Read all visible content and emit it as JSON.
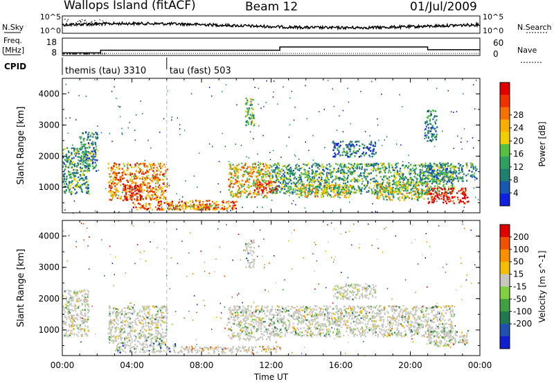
{
  "header": {
    "site": "Wallops Island (fitACF)",
    "beam": "Beam 12",
    "date": "01/Jul/2009"
  },
  "summary_panels": {
    "nsky_label": "N.Sky",
    "nsearch_label": "N.Search",
    "freq_label_1": "Freq.",
    "freq_label_2": "[MHz]",
    "nave_label": "Nave",
    "cpid_label": "CPID",
    "noise_ticks_left": [
      "10^5",
      "10^0"
    ],
    "noise_ticks_right": [
      "10^5",
      "10^0"
    ],
    "freq_ticks": [
      "18",
      "8"
    ],
    "nave_ticks": [
      "60",
      "0"
    ],
    "cpid_segments": [
      {
        "label": "themis (tau) 3310",
        "start_hour": 0,
        "end_hour": 6
      },
      {
        "label": "tau (fast) 503",
        "start_hour": 6,
        "end_hour": 24
      }
    ],
    "freq_steps": [
      {
        "start_hour": 0.0,
        "end_hour": 2.2,
        "mhz": 9.5
      },
      {
        "start_hour": 2.2,
        "end_hour": 11.9,
        "mhz": 11.0
      },
      {
        "start_hour": 11.9,
        "end_hour": 12.5,
        "mhz": 11.0
      },
      {
        "start_hour": 12.5,
        "end_hour": 21.0,
        "mhz": 12.9
      },
      {
        "start_hour": 21.0,
        "end_hour": 24.0,
        "mhz": 11.3
      }
    ]
  },
  "chart_data": [
    {
      "type": "heatmap",
      "panel": "power",
      "ylabel": "Slant Range [km]",
      "xlabel": "",
      "xlim_hours": [
        0,
        24
      ],
      "ylim": [
        180,
        4500
      ],
      "yticks": [
        "1000",
        "2000",
        "3000",
        "4000"
      ],
      "colorbar_label": "Power [dB]",
      "colorbar_ticks": [
        "4",
        "8",
        "12",
        "16",
        "20",
        "24",
        "28"
      ],
      "colorbar_colors": [
        "#1020e0",
        "#1858b0",
        "#208070",
        "#30a060",
        "#58c040",
        "#f0d000",
        "#f8b000",
        "#f87000",
        "#f03000",
        "#e00000"
      ],
      "regions": [
        {
          "x0": 2.6,
          "x1": 6.0,
          "y0": 600,
          "y1": 1800,
          "level": 0.72
        },
        {
          "x0": 3.5,
          "x1": 4.5,
          "y0": 600,
          "y1": 1100,
          "level": 0.95
        },
        {
          "x0": 4.0,
          "x1": 10.0,
          "y0": 300,
          "y1": 600,
          "level": 0.78
        },
        {
          "x0": 6.0,
          "x1": 9.0,
          "y0": 300,
          "y1": 450,
          "level": 0.6
        },
        {
          "x0": 9.5,
          "x1": 12.0,
          "y0": 700,
          "y1": 1800,
          "level": 0.6
        },
        {
          "x0": 11.0,
          "x1": 12.3,
          "y0": 800,
          "y1": 1200,
          "level": 0.9
        },
        {
          "x0": 10.5,
          "x1": 11.0,
          "y0": 3000,
          "y1": 3900,
          "level": 0.45
        },
        {
          "x0": 12.0,
          "x1": 22.5,
          "y0": 800,
          "y1": 1800,
          "level": 0.35
        },
        {
          "x0": 13.5,
          "x1": 16.5,
          "y0": 700,
          "y1": 1100,
          "level": 0.55
        },
        {
          "x0": 15.5,
          "x1": 18.0,
          "y0": 2000,
          "y1": 2500,
          "level": 0.22
        },
        {
          "x0": 18.0,
          "x1": 21.0,
          "y0": 600,
          "y1": 1200,
          "level": 0.5
        },
        {
          "x0": 21.0,
          "x1": 23.3,
          "y0": 500,
          "y1": 1000,
          "level": 0.95
        },
        {
          "x0": 20.5,
          "x1": 23.8,
          "y0": 1200,
          "y1": 1800,
          "level": 0.3
        },
        {
          "x0": 20.8,
          "x1": 21.5,
          "y0": 2500,
          "y1": 3500,
          "level": 0.25
        },
        {
          "x0": 0.0,
          "x1": 1.5,
          "y0": 800,
          "y1": 2300,
          "level": 0.35
        },
        {
          "x0": 1.0,
          "x1": 2.0,
          "y0": 1500,
          "y1": 2800,
          "level": 0.3
        }
      ]
    },
    {
      "type": "heatmap",
      "panel": "velocity",
      "ylabel": "Slant Range [km]",
      "xlabel": "Time UT",
      "xlim_hours": [
        0,
        24
      ],
      "ylim": [
        180,
        4500
      ],
      "yticks": [
        "1000",
        "2000",
        "3000",
        "4000"
      ],
      "xticks": [
        "00:00",
        "04:00",
        "08:00",
        "12:00",
        "16:00",
        "20:00",
        "00:00"
      ],
      "colorbar_label": "Velocity [m s^-1]",
      "colorbar_ticks": [
        "200",
        "100",
        "50",
        "15",
        "-15",
        "-50",
        "-100",
        "-200"
      ],
      "colorbar_colors": [
        "#1020d0",
        "#2050b0",
        "#207850",
        "#40a040",
        "#80d040",
        "#c8c8c0",
        "#f0c000",
        "#f89000",
        "#f05000",
        "#e00000"
      ],
      "regions": [
        {
          "x0": 2.6,
          "x1": 6.0,
          "y0": 600,
          "y1": 1800,
          "level": 0.5
        },
        {
          "x0": 3.0,
          "x1": 6.5,
          "y0": 300,
          "y1": 600,
          "level": 0.2
        },
        {
          "x0": 6.5,
          "x1": 12.5,
          "y0": 280,
          "y1": 500,
          "level": 0.65
        },
        {
          "x0": 9.5,
          "x1": 12.0,
          "y0": 700,
          "y1": 1800,
          "level": 0.5
        },
        {
          "x0": 10.5,
          "x1": 11.0,
          "y0": 3000,
          "y1": 3900,
          "level": 0.4
        },
        {
          "x0": 12.0,
          "x1": 22.5,
          "y0": 800,
          "y1": 1800,
          "level": 0.5
        },
        {
          "x0": 15.5,
          "x1": 18.0,
          "y0": 2000,
          "y1": 2500,
          "level": 0.5
        },
        {
          "x0": 21.0,
          "x1": 23.3,
          "y0": 500,
          "y1": 1000,
          "level": 0.5
        },
        {
          "x0": 0.0,
          "x1": 1.5,
          "y0": 800,
          "y1": 2300,
          "level": 0.5
        }
      ]
    }
  ]
}
